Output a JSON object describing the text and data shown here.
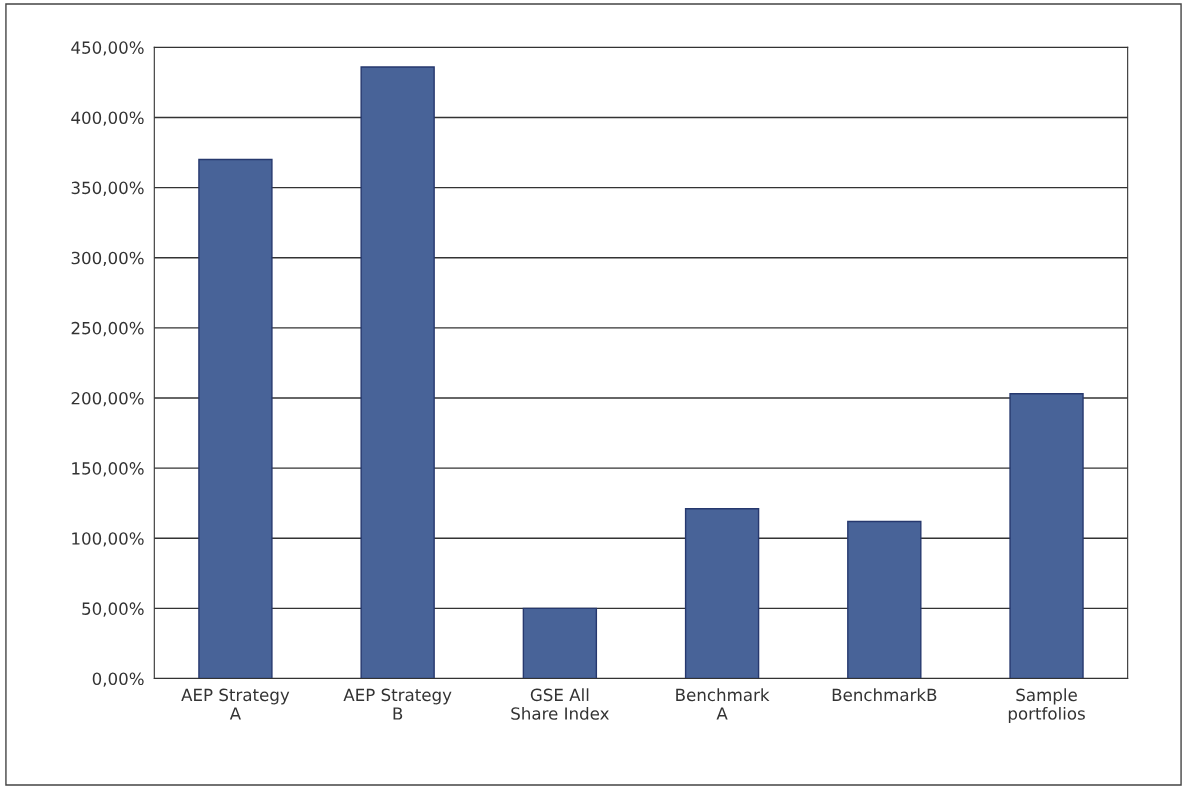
{
  "chart_data": {
    "type": "bar",
    "categories": [
      "AEP Strategy\nA",
      "AEP Strategy\nB",
      "GSE All\nShare Index",
      "Benchmark\nA",
      "BenchmarkB",
      "Sample\nportfolios"
    ],
    "values": [
      370,
      436,
      50,
      121,
      112,
      203
    ],
    "color": "#3a5fa6",
    "ylim": [
      0,
      450
    ],
    "yticks": [
      {
        "value": 0,
        "label": "0,00%"
      },
      {
        "value": 50,
        "label": "50,00%"
      },
      {
        "value": 100,
        "label": "100,00%"
      },
      {
        "value": 150,
        "label": "150,00%"
      },
      {
        "value": 200,
        "label": "200,00%"
      },
      {
        "value": 250,
        "label": "250,00%"
      },
      {
        "value": 300,
        "label": "300,00%"
      },
      {
        "value": 350,
        "label": "350,00%"
      },
      {
        "value": 400,
        "label": "400,00%"
      },
      {
        "value": 450,
        "label": "450,00%"
      }
    ],
    "grid": "y"
  }
}
